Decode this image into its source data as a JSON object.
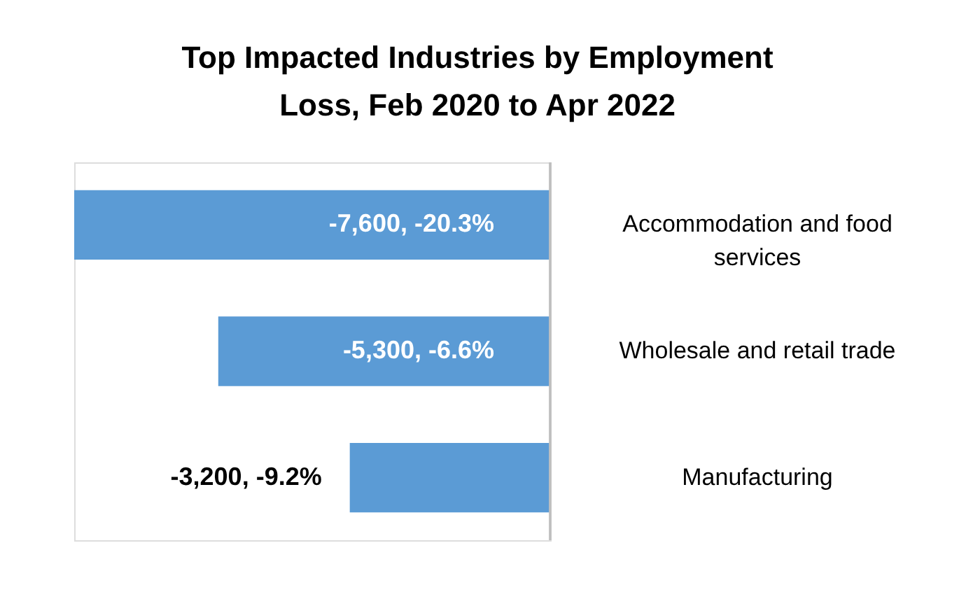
{
  "chart_data": {
    "type": "bar",
    "orientation": "horizontal",
    "title": "Top Impacted Industries by Employment Loss, Feb 2020 to Apr 2022",
    "categories": [
      "Accommodation and food services",
      "Wholesale and retail trade",
      "Manufacturing"
    ],
    "values": [
      -7600,
      -5300,
      -3200
    ],
    "value_labels": [
      "-7,600, -20.3%",
      "-5,300, -6.6%",
      "-3,200, -9.2%"
    ],
    "color": "#5b9bd5",
    "xlim": [
      -7600,
      0
    ]
  }
}
